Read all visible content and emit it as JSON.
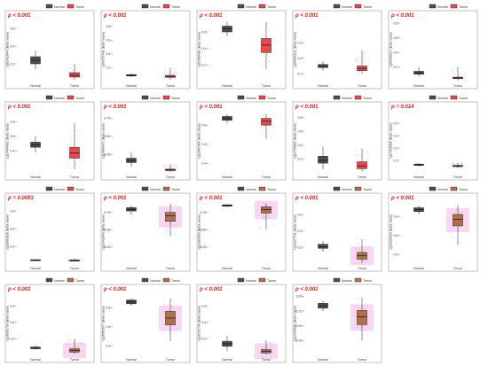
{
  "figure": {
    "legend_labels": [
      "Normal",
      "Tumor"
    ],
    "category_labels": [
      "Normal",
      "Tumor"
    ]
  },
  "colors": {
    "normal_box": "#4d4d4d",
    "tumor_box": "#e8474c",
    "tumor_box_alt": "#b0704a",
    "pvalue_text": "#e31a1c",
    "panel_border": "#9a9a9a",
    "halo": "#f3b6e8"
  },
  "chart_data": [
    {
      "type": "box",
      "pvalue": "p < 0.001",
      "ylabel": "cg02410044 (Beta value)",
      "yticks": [
        "0.2",
        "0.4",
        "0.6"
      ],
      "ylim": [
        0,
        0.7
      ],
      "normal": {
        "q1": 0.2,
        "median": 0.24,
        "q3": 0.28,
        "min": 0.14,
        "max": 0.35
      },
      "tumor": {
        "q1": 0.05,
        "median": 0.07,
        "q3": 0.1,
        "min": 0.02,
        "max": 0.2
      },
      "tumor_color": "red",
      "halo": false
    },
    {
      "type": "box",
      "pvalue": "p < 0.001",
      "ylabel": "cg04757441 (Beta value)",
      "yticks": [
        "0.2",
        "0.4",
        "0.6",
        "0.8"
      ],
      "ylim": [
        0,
        0.9
      ],
      "normal": {
        "q1": 0.08,
        "median": 0.09,
        "q3": 0.1,
        "min": 0.07,
        "max": 0.12
      },
      "tumor": {
        "q1": 0.06,
        "median": 0.075,
        "q3": 0.09,
        "min": 0.03,
        "max": 0.2
      },
      "tumor_color": "red",
      "halo": false
    },
    {
      "type": "box",
      "pvalue": "p < 0.001",
      "ylabel": "cg07666481 (Beta value)",
      "yticks": [
        "0.2",
        "0.4",
        "0.6"
      ],
      "ylim": [
        0,
        0.75
      ],
      "normal": {
        "q1": 0.6,
        "median": 0.64,
        "q3": 0.67,
        "min": 0.55,
        "max": 0.72
      },
      "tumor": {
        "q1": 0.35,
        "median": 0.44,
        "q3": 0.52,
        "min": 0.15,
        "max": 0.72
      },
      "tumor_color": "red",
      "halo": false
    },
    {
      "type": "box",
      "pvalue": "p < 0.001",
      "ylabel": "cg08002121 (Beta value)",
      "yticks": [
        "0.1",
        "0.2",
        "0.3"
      ],
      "ylim": [
        0.05,
        0.45
      ],
      "normal": {
        "q1": 0.14,
        "median": 0.15,
        "q3": 0.16,
        "min": 0.12,
        "max": 0.18
      },
      "tumor": {
        "q1": 0.12,
        "median": 0.135,
        "q3": 0.15,
        "min": 0.1,
        "max": 0.25
      },
      "tumor_color": "red",
      "halo": false
    },
    {
      "type": "box",
      "pvalue": "p < 0.001",
      "ylabel": "cg09355117 (Beta value)",
      "yticks": [
        "0.2",
        "0.4",
        "0.6",
        "0.8"
      ],
      "ylim": [
        0,
        0.85
      ],
      "normal": {
        "q1": 0.1,
        "median": 0.12,
        "q3": 0.14,
        "min": 0.07,
        "max": 0.2
      },
      "tumor": {
        "q1": 0.04,
        "median": 0.05,
        "q3": 0.06,
        "min": 0.02,
        "max": 0.2
      },
      "tumor_color": "red",
      "halo": false
    },
    {
      "type": "box",
      "pvalue": "p < 0.001",
      "ylabel": "cg10454602 (Beta value)",
      "yticks": [
        "0.4",
        "0.6",
        "0.8"
      ],
      "ylim": [
        0.1,
        0.95
      ],
      "normal": {
        "q1": 0.45,
        "median": 0.48,
        "q3": 0.52,
        "min": 0.38,
        "max": 0.6
      },
      "tumor": {
        "q1": 0.3,
        "median": 0.37,
        "q3": 0.45,
        "min": 0.15,
        "max": 0.78
      },
      "tumor_color": "red",
      "halo": false
    },
    {
      "type": "box",
      "pvalue": "p < 0.001",
      "ylabel": "cg10809473 (Beta value)",
      "yticks": [
        "0.25",
        "0.50",
        "0.75"
      ],
      "ylim": [
        0,
        0.85
      ],
      "normal": {
        "q1": 0.14,
        "median": 0.17,
        "q3": 0.2,
        "min": 0.08,
        "max": 0.28
      },
      "tumor": {
        "q1": 0.03,
        "median": 0.04,
        "q3": 0.05,
        "min": 0.01,
        "max": 0.12
      },
      "tumor_color": "red",
      "halo": false
    },
    {
      "type": "box",
      "pvalue": "p < 0.001",
      "ylabel": "cg12807069 (Beta value)",
      "yticks": [
        "0.4",
        "0.6",
        "0.8"
      ],
      "ylim": [
        0.3,
        0.95
      ],
      "normal": {
        "q1": 0.85,
        "median": 0.87,
        "q3": 0.89,
        "min": 0.82,
        "max": 0.91
      },
      "tumor": {
        "q1": 0.8,
        "median": 0.84,
        "q3": 0.87,
        "min": 0.65,
        "max": 0.92
      },
      "tumor_color": "red",
      "halo": false
    },
    {
      "type": "box",
      "pvalue": "p < 0.001",
      "ylabel": "cg12750853 (Beta value)",
      "yticks": [
        "0.2",
        "0.4",
        "0.6",
        "0.8"
      ],
      "ylim": [
        0,
        0.9
      ],
      "normal": {
        "q1": 0.14,
        "median": 0.18,
        "q3": 0.24,
        "min": 0.05,
        "max": 0.38
      },
      "tumor": {
        "q1": 0.06,
        "median": 0.1,
        "q3": 0.16,
        "min": 0.02,
        "max": 0.35
      },
      "tumor_color": "red",
      "halo": false
    },
    {
      "type": "box",
      "pvalue": "p = 0.014",
      "ylabel": "cg17035968 (Beta value)",
      "yticks": [
        "0.1",
        "0.2",
        "0.3",
        "0.4"
      ],
      "ylim": [
        0,
        0.5
      ],
      "normal": {
        "q1": 0.06,
        "median": 0.065,
        "q3": 0.07,
        "min": 0.05,
        "max": 0.08
      },
      "tumor": {
        "q1": 0.05,
        "median": 0.055,
        "q3": 0.06,
        "min": 0.04,
        "max": 0.08
      },
      "tumor_color": "red",
      "halo": false
    },
    {
      "type": "box",
      "pvalue": "p = 0.0053",
      "ylabel": "cg18093826 (Beta value)",
      "yticks": [
        "0.2",
        "0.4",
        "0.6"
      ],
      "ylim": [
        0,
        0.7
      ],
      "normal": {
        "q1": 0.04,
        "median": 0.045,
        "q3": 0.05,
        "min": 0.035,
        "max": 0.055
      },
      "tumor": {
        "q1": 0.035,
        "median": 0.04,
        "q3": 0.045,
        "min": 0.03,
        "max": 0.06
      },
      "tumor_color": "red",
      "halo": false
    },
    {
      "type": "box",
      "pvalue": "p < 0.001",
      "ylabel": "cg21442643 (Beta value)",
      "yticks": [
        "0.25",
        "0.50",
        "0.75"
      ],
      "ylim": [
        0,
        0.9
      ],
      "normal": {
        "q1": 0.77,
        "median": 0.79,
        "q3": 0.82,
        "min": 0.72,
        "max": 0.85
      },
      "tumor": {
        "q1": 0.62,
        "median": 0.7,
        "q3": 0.75,
        "min": 0.4,
        "max": 0.88
      },
      "tumor_color": "brown",
      "halo": true
    },
    {
      "type": "box",
      "pvalue": "p < 0.001",
      "ylabel": "cg23063563 (Beta value)",
      "yticks": [
        "0.25",
        "0.50",
        "0.75"
      ],
      "ylim": [
        0,
        0.9
      ],
      "normal": {
        "q1": 0.84,
        "median": 0.85,
        "q3": 0.86,
        "min": 0.83,
        "max": 0.87
      },
      "tumor": {
        "q1": 0.74,
        "median": 0.79,
        "q3": 0.83,
        "min": 0.5,
        "max": 0.88
      },
      "tumor_color": "brown",
      "halo": true
    },
    {
      "type": "box",
      "pvalue": "p < 0.001",
      "ylabel": "cg24227711 (Beta value)",
      "yticks": [
        "0.2",
        "0.4",
        "0.6"
      ],
      "ylim": [
        0,
        0.75
      ],
      "normal": {
        "q1": 0.19,
        "median": 0.21,
        "q3": 0.24,
        "min": 0.15,
        "max": 0.28
      },
      "tumor": {
        "q1": 0.06,
        "median": 0.1,
        "q3": 0.14,
        "min": 0.01,
        "max": 0.3
      },
      "tumor_color": "brown",
      "halo": true
    },
    {
      "type": "box",
      "pvalue": "p < 0.001",
      "ylabel": "cg25202640 (Beta value)",
      "yticks": [
        "0.4",
        "0.6",
        "0.8"
      ],
      "ylim": [
        0.3,
        0.95
      ],
      "normal": {
        "q1": 0.85,
        "median": 0.87,
        "q3": 0.89,
        "min": 0.82,
        "max": 0.91
      },
      "tumor": {
        "q1": 0.7,
        "median": 0.77,
        "q3": 0.82,
        "min": 0.5,
        "max": 0.92
      },
      "tumor_color": "brown",
      "halo": true
    },
    {
      "type": "box",
      "pvalue": "p < 0.001",
      "ylabel": "cg26651730 (Beta value)",
      "yticks": [
        "0.2",
        "0.4",
        "0.6"
      ],
      "ylim": [
        0,
        0.75
      ],
      "normal": {
        "q1": 0.08,
        "median": 0.09,
        "q3": 0.1,
        "min": 0.07,
        "max": 0.12
      },
      "tumor": {
        "q1": 0.04,
        "median": 0.06,
        "q3": 0.08,
        "min": 0.02,
        "max": 0.2
      },
      "tumor_color": "brown",
      "halo": true
    },
    {
      "type": "box",
      "pvalue": "p < 0.001",
      "ylabel": "cg26663577 (Beta value)",
      "yticks": [
        "0.4",
        "0.6",
        "0.8"
      ],
      "ylim": [
        0.3,
        0.95
      ],
      "normal": {
        "q1": 0.84,
        "median": 0.86,
        "q3": 0.88,
        "min": 0.82,
        "max": 0.9
      },
      "tumor": {
        "q1": 0.62,
        "median": 0.69,
        "q3": 0.76,
        "min": 0.45,
        "max": 0.9
      },
      "tumor_color": "brown",
      "halo": true
    },
    {
      "type": "box",
      "pvalue": "p < 0.001",
      "ylabel": "cg26731708 (Beta value)",
      "yticks": [
        "0.2",
        "0.4",
        "0.6"
      ],
      "ylim": [
        0,
        0.75
      ],
      "normal": {
        "q1": 0.11,
        "median": 0.14,
        "q3": 0.17,
        "min": 0.05,
        "max": 0.24
      },
      "tumor": {
        "q1": 0.03,
        "median": 0.05,
        "q3": 0.07,
        "min": 0.01,
        "max": 0.18
      },
      "tumor_color": "brown",
      "halo": true
    },
    {
      "type": "box",
      "pvalue": "p < 0.001",
      "ylabel": "cg27036562 (Beta value)",
      "yticks": [
        "0.25",
        "0.50",
        "0.75",
        "1.00"
      ],
      "ylim": [
        0,
        1.05
      ],
      "normal": {
        "q1": 0.8,
        "median": 0.84,
        "q3": 0.88,
        "min": 0.75,
        "max": 0.92
      },
      "tumor": {
        "q1": 0.52,
        "median": 0.65,
        "q3": 0.76,
        "min": 0.25,
        "max": 0.98
      },
      "tumor_color": "brown",
      "halo": true
    }
  ]
}
